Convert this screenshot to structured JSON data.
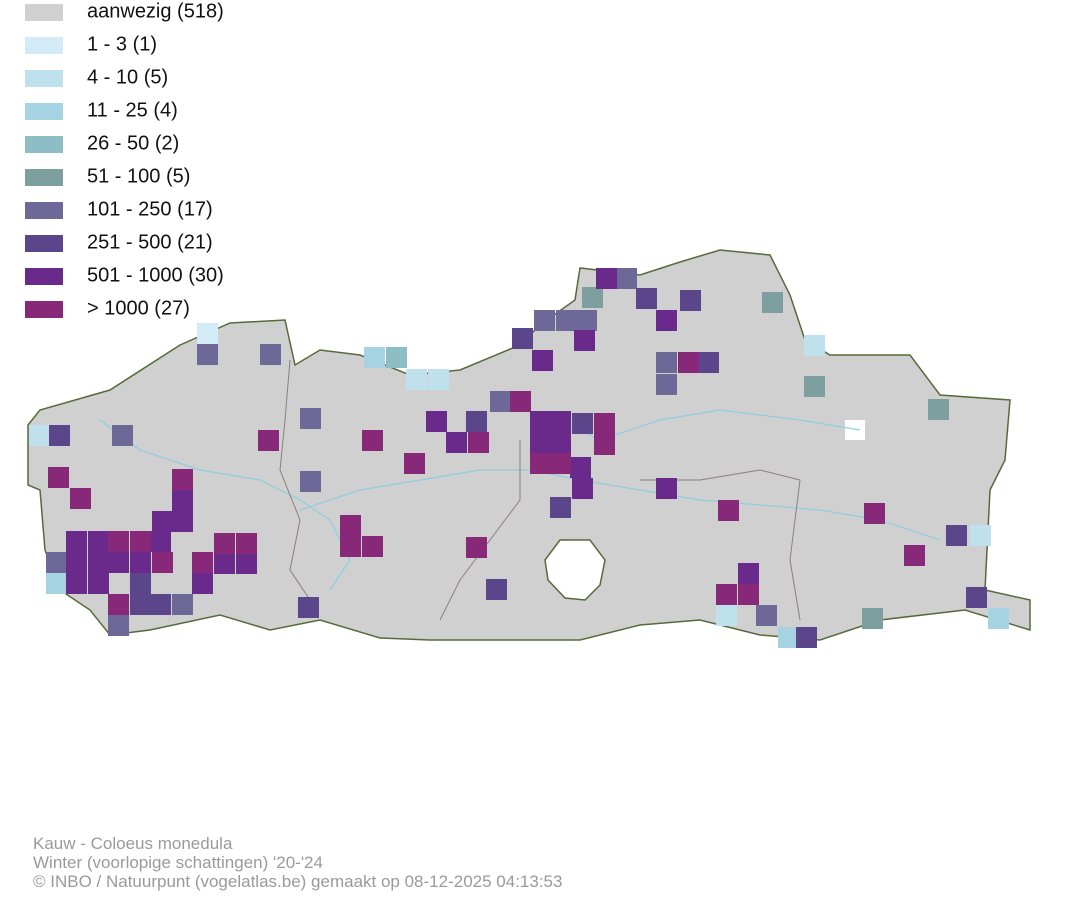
{
  "legend": {
    "items": [
      {
        "label": "aanwezig (518)",
        "color": "#d0d0d0"
      },
      {
        "label": "1 - 3 (1)",
        "color": "#d3eaf7"
      },
      {
        "label": "4 - 10 (5)",
        "color": "#bfe1ee"
      },
      {
        "label": "11 - 25 (4)",
        "color": "#a5d3e2"
      },
      {
        "label": "26 - 50 (2)",
        "color": "#8dbdc5"
      },
      {
        "label": "51 - 100 (5)",
        "color": "#7e9f9f"
      },
      {
        "label": "101 - 250 (17)",
        "color": "#6e6898"
      },
      {
        "label": "251 - 500 (21)",
        "color": "#5b468b"
      },
      {
        "label": "501 - 1000 (30)",
        "color": "#6a2a8c"
      },
      {
        "label": "> 1000 (27)",
        "color": "#872878"
      }
    ]
  },
  "caption": {
    "lines": [
      "Kauw - Coloeus monedula",
      "Winter (voorlopige schattingen) '20-'24",
      "© INBO / Natuurpunt (vogelatlas.be) gemaakt op 08-12-2025 04:13:53"
    ]
  }
}
